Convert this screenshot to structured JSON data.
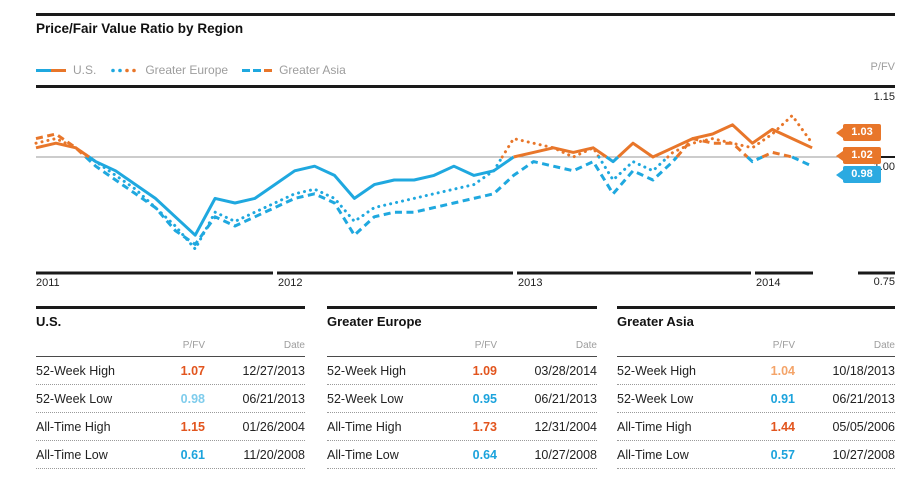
{
  "header": {
    "title": "Price/Fair Value Ratio by Region"
  },
  "legend": {
    "items": [
      {
        "label": "U.S.",
        "line_style": "solid"
      },
      {
        "label": "Greater Europe",
        "line_style": "dotted"
      },
      {
        "label": "Greater Asia",
        "line_style": "dashed"
      }
    ]
  },
  "colors": {
    "line_blue": "#1FA8DF",
    "line_orange": "#E8762A",
    "badge_orange": "#E8762A",
    "badge_blue": "#2BAAE1",
    "value_orange": "#E2551E",
    "value_light_orange": "#F4A469",
    "value_blue": "#1CA3DC",
    "value_light_blue": "#7ECCEC",
    "muted_text": "#9d9d9d",
    "axis_black": "#1a1a1a",
    "baseline_gray": "#999999"
  },
  "chart_data": {
    "type": "line",
    "title": "Price/Fair Value Ratio by Region",
    "ylabel": "P/FV",
    "ylim": [
      0.75,
      1.15
    ],
    "ytick_labels": [
      "1.15",
      "1.00",
      "0.75"
    ],
    "baseline": 1.0,
    "grid": "baseline only",
    "color_rule": "segments above 1.00 drawn orange, below 1.00 drawn blue",
    "x_labels": [
      "2011",
      "2012",
      "2013",
      "2014"
    ],
    "x_months": [
      "2011-01",
      "2011-02",
      "2011-03",
      "2011-04",
      "2011-05",
      "2011-06",
      "2011-07",
      "2011-08",
      "2011-09",
      "2011-10",
      "2011-11",
      "2011-12",
      "2012-01",
      "2012-02",
      "2012-03",
      "2012-04",
      "2012-05",
      "2012-06",
      "2012-07",
      "2012-08",
      "2012-09",
      "2012-10",
      "2012-11",
      "2012-12",
      "2013-01",
      "2013-02",
      "2013-03",
      "2013-04",
      "2013-05",
      "2013-06",
      "2013-07",
      "2013-08",
      "2013-09",
      "2013-10",
      "2013-11",
      "2013-12",
      "2014-01",
      "2014-02",
      "2014-03",
      "2014-04"
    ],
    "series": [
      {
        "name": "U.S.",
        "line_style": "solid",
        "values": [
          1.02,
          1.03,
          1.02,
          0.99,
          0.97,
          0.94,
          0.91,
          0.87,
          0.83,
          0.91,
          0.9,
          0.91,
          0.94,
          0.97,
          0.98,
          0.96,
          0.91,
          0.94,
          0.95,
          0.95,
          0.96,
          0.98,
          0.96,
          0.97,
          1.0,
          1.01,
          1.02,
          1.01,
          1.02,
          0.99,
          1.03,
          1.0,
          1.02,
          1.04,
          1.05,
          1.07,
          1.03,
          1.06,
          1.04,
          1.02
        ]
      },
      {
        "name": "Greater Europe",
        "line_style": "dotted",
        "values": [
          1.03,
          1.04,
          1.02,
          0.99,
          0.96,
          0.93,
          0.89,
          0.85,
          0.8,
          0.88,
          0.86,
          0.88,
          0.9,
          0.92,
          0.93,
          0.91,
          0.86,
          0.89,
          0.9,
          0.91,
          0.92,
          0.93,
          0.94,
          0.97,
          1.04,
          1.03,
          1.02,
          1.0,
          1.02,
          0.95,
          0.99,
          0.97,
          1.01,
          1.03,
          1.04,
          1.03,
          1.02,
          1.05,
          1.09,
          1.03
        ]
      },
      {
        "name": "Greater Asia",
        "line_style": "dashed",
        "values": [
          1.04,
          1.05,
          1.02,
          0.98,
          0.95,
          0.92,
          0.89,
          0.84,
          0.81,
          0.87,
          0.85,
          0.87,
          0.89,
          0.91,
          0.92,
          0.9,
          0.83,
          0.87,
          0.88,
          0.88,
          0.89,
          0.9,
          0.91,
          0.92,
          0.96,
          0.99,
          0.98,
          0.97,
          0.99,
          0.92,
          0.97,
          0.95,
          0.99,
          1.04,
          1.03,
          1.03,
          0.99,
          1.01,
          1.0,
          0.98
        ]
      }
    ],
    "end_labels": [
      {
        "series": "Greater Europe",
        "value": "1.03",
        "tone": "orange"
      },
      {
        "series": "U.S.",
        "value": "1.02",
        "tone": "orange"
      },
      {
        "series": "Greater Asia",
        "value": "0.98",
        "tone": "blue"
      }
    ],
    "legend_position": "top-left"
  },
  "tables": [
    {
      "title": "U.S.",
      "columns": [
        "P/FV",
        "Date"
      ],
      "rows": [
        {
          "label": "52-Week High",
          "pfv": "1.07",
          "tone": "orange",
          "date": "12/27/2013"
        },
        {
          "label": "52-Week Low",
          "pfv": "0.98",
          "tone": "light-blue",
          "date": "06/21/2013"
        },
        {
          "label": "All-Time High",
          "pfv": "1.15",
          "tone": "orange",
          "date": "01/26/2004"
        },
        {
          "label": "All-Time Low",
          "pfv": "0.61",
          "tone": "blue",
          "date": "11/20/2008"
        }
      ]
    },
    {
      "title": "Greater Europe",
      "columns": [
        "P/FV",
        "Date"
      ],
      "rows": [
        {
          "label": "52-Week High",
          "pfv": "1.09",
          "tone": "orange",
          "date": "03/28/2014"
        },
        {
          "label": "52-Week Low",
          "pfv": "0.95",
          "tone": "blue",
          "date": "06/21/2013"
        },
        {
          "label": "All-Time High",
          "pfv": "1.73",
          "tone": "orange",
          "date": "12/31/2004"
        },
        {
          "label": "All-Time Low",
          "pfv": "0.64",
          "tone": "blue",
          "date": "10/27/2008"
        }
      ]
    },
    {
      "title": "Greater Asia",
      "columns": [
        "P/FV",
        "Date"
      ],
      "rows": [
        {
          "label": "52-Week High",
          "pfv": "1.04",
          "tone": "light-orange",
          "date": "10/18/2013"
        },
        {
          "label": "52-Week Low",
          "pfv": "0.91",
          "tone": "blue",
          "date": "06/21/2013"
        },
        {
          "label": "All-Time High",
          "pfv": "1.44",
          "tone": "orange",
          "date": "05/05/2006"
        },
        {
          "label": "All-Time Low",
          "pfv": "0.57",
          "tone": "blue",
          "date": "10/27/2008"
        }
      ]
    }
  ]
}
